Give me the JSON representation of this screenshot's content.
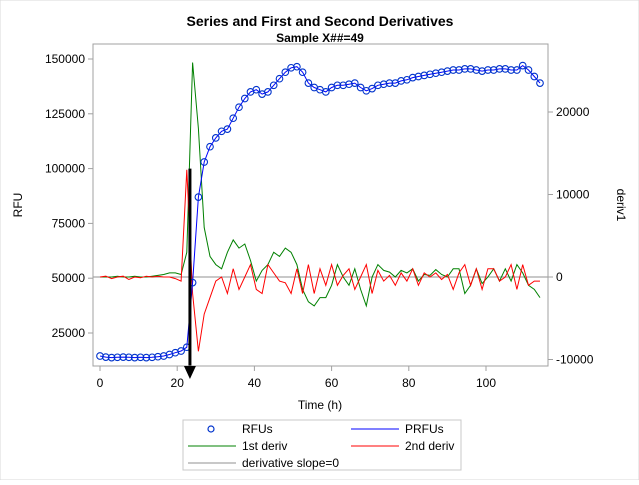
{
  "chart_data": {
    "type": "line",
    "title": "Series and First and Second Derivatives",
    "subtitle": "Sample X##=49",
    "xlabel": "Time (h)",
    "ylabel": "RFU",
    "y2label": "deriv1",
    "xlim": [
      -2,
      116
    ],
    "ylim": [
      9000,
      156000
    ],
    "y2lim": [
      -10000,
      29000
    ],
    "x_ticks": [
      "0",
      "20",
      "40",
      "60",
      "80",
      "100"
    ],
    "y_ticks": [
      "25000",
      "50000",
      "75000",
      "100000",
      "125000",
      "150000"
    ],
    "y2_ticks": [
      "-10000",
      "0",
      "10000",
      "20000"
    ],
    "x_start": 0,
    "x_step": 1.5,
    "series": [
      {
        "name": "RFUs",
        "axis": "left",
        "style": "markers",
        "color": "#0000ff",
        "values": [
          14500,
          14000,
          13800,
          13900,
          14000,
          13900,
          13800,
          13900,
          13800,
          13900,
          14200,
          14500,
          15200,
          16000,
          16800,
          18500,
          48000,
          87000,
          103000,
          110000,
          114000,
          117000,
          118000,
          123000,
          128000,
          132000,
          135000,
          136000,
          134000,
          135000,
          138000,
          141000,
          144000,
          146000,
          146500,
          144000,
          139000,
          137000,
          136000,
          135000,
          137000,
          138000,
          138000,
          138500,
          139000,
          137000,
          135500,
          136500,
          138000,
          138500,
          139000,
          139000,
          140000,
          140500,
          141500,
          142000,
          142500,
          143000,
          143500,
          144000,
          144500,
          145000,
          145000,
          145500,
          145500,
          145000,
          144500,
          145000,
          145000,
          145500,
          145500,
          145000,
          145000,
          147000,
          145000,
          142000,
          139000
        ]
      },
      {
        "name": "PRFUs",
        "axis": "left",
        "style": "line",
        "color": "#0000ff",
        "same_as": "RFUs"
      },
      {
        "name": "1st deriv",
        "axis": "right",
        "style": "line",
        "color": "#008000",
        "values": [
          0,
          0,
          0,
          100,
          0,
          0,
          100,
          0,
          0,
          100,
          200,
          300,
          500,
          500,
          300,
          3000,
          26000,
          18000,
          6000,
          2500,
          1500,
          1000,
          3000,
          4500,
          3500,
          4000,
          2000,
          -500,
          800,
          1500,
          3000,
          2500,
          3500,
          3000,
          1500,
          -1500,
          -3000,
          -3500,
          -2500,
          -2500,
          -1000,
          1500,
          0,
          -1000,
          1000,
          -1500,
          -3500,
          0,
          1500,
          800,
          600,
          0,
          800,
          500,
          1000,
          -500,
          300,
          200,
          900,
          300,
          0,
          1000,
          1000,
          -2000,
          -1000,
          1000,
          -800,
          0,
          1000,
          -500,
          1000,
          -500,
          1500,
          500,
          -1000,
          -1500,
          -2500
        ]
      },
      {
        "name": "2nd deriv",
        "axis": "right",
        "style": "line",
        "color": "#ff0000",
        "values": [
          0,
          100,
          -200,
          0,
          100,
          -300,
          0,
          -100,
          100,
          0,
          100,
          0,
          0,
          -200,
          -500,
          13000,
          -2000,
          -9000,
          -4500,
          -2500,
          -500,
          0,
          -2000,
          1000,
          -1500,
          0,
          1500,
          -1500,
          -2000,
          1500,
          500,
          -500,
          -700,
          -2000,
          1000,
          -2000,
          1500,
          -2000,
          1000,
          -1000,
          1500,
          -1000,
          200,
          1000,
          -1500,
          0,
          1500,
          -2000,
          800,
          -500,
          200,
          -1000,
          500,
          -500,
          1000,
          -1000,
          500,
          0,
          500,
          -300,
          300,
          -1500,
          500,
          1500,
          -1000,
          1000,
          -1500,
          1000,
          1000,
          -500,
          0,
          1500,
          -1500,
          1500,
          -1000,
          -500,
          -500
        ]
      },
      {
        "name": "derivative slope=0",
        "axis": "right",
        "style": "refline",
        "color": "#909090",
        "value": 0
      }
    ],
    "annotation": {
      "type": "arrow",
      "x": 23.3,
      "from_y": 100000,
      "label": ""
    },
    "legend": {
      "position": "bottom",
      "items": [
        {
          "label": "RFUs",
          "symbol": "circle",
          "color": "#0033cc"
        },
        {
          "label": "PRFUs",
          "symbol": "line",
          "color": "#0000ff"
        },
        {
          "label": "1st deriv",
          "symbol": "line",
          "color": "#008000"
        },
        {
          "label": "2nd deriv",
          "symbol": "line",
          "color": "#ff0000"
        },
        {
          "label": "derivative slope=0",
          "symbol": "line",
          "color": "#909090"
        }
      ]
    }
  }
}
